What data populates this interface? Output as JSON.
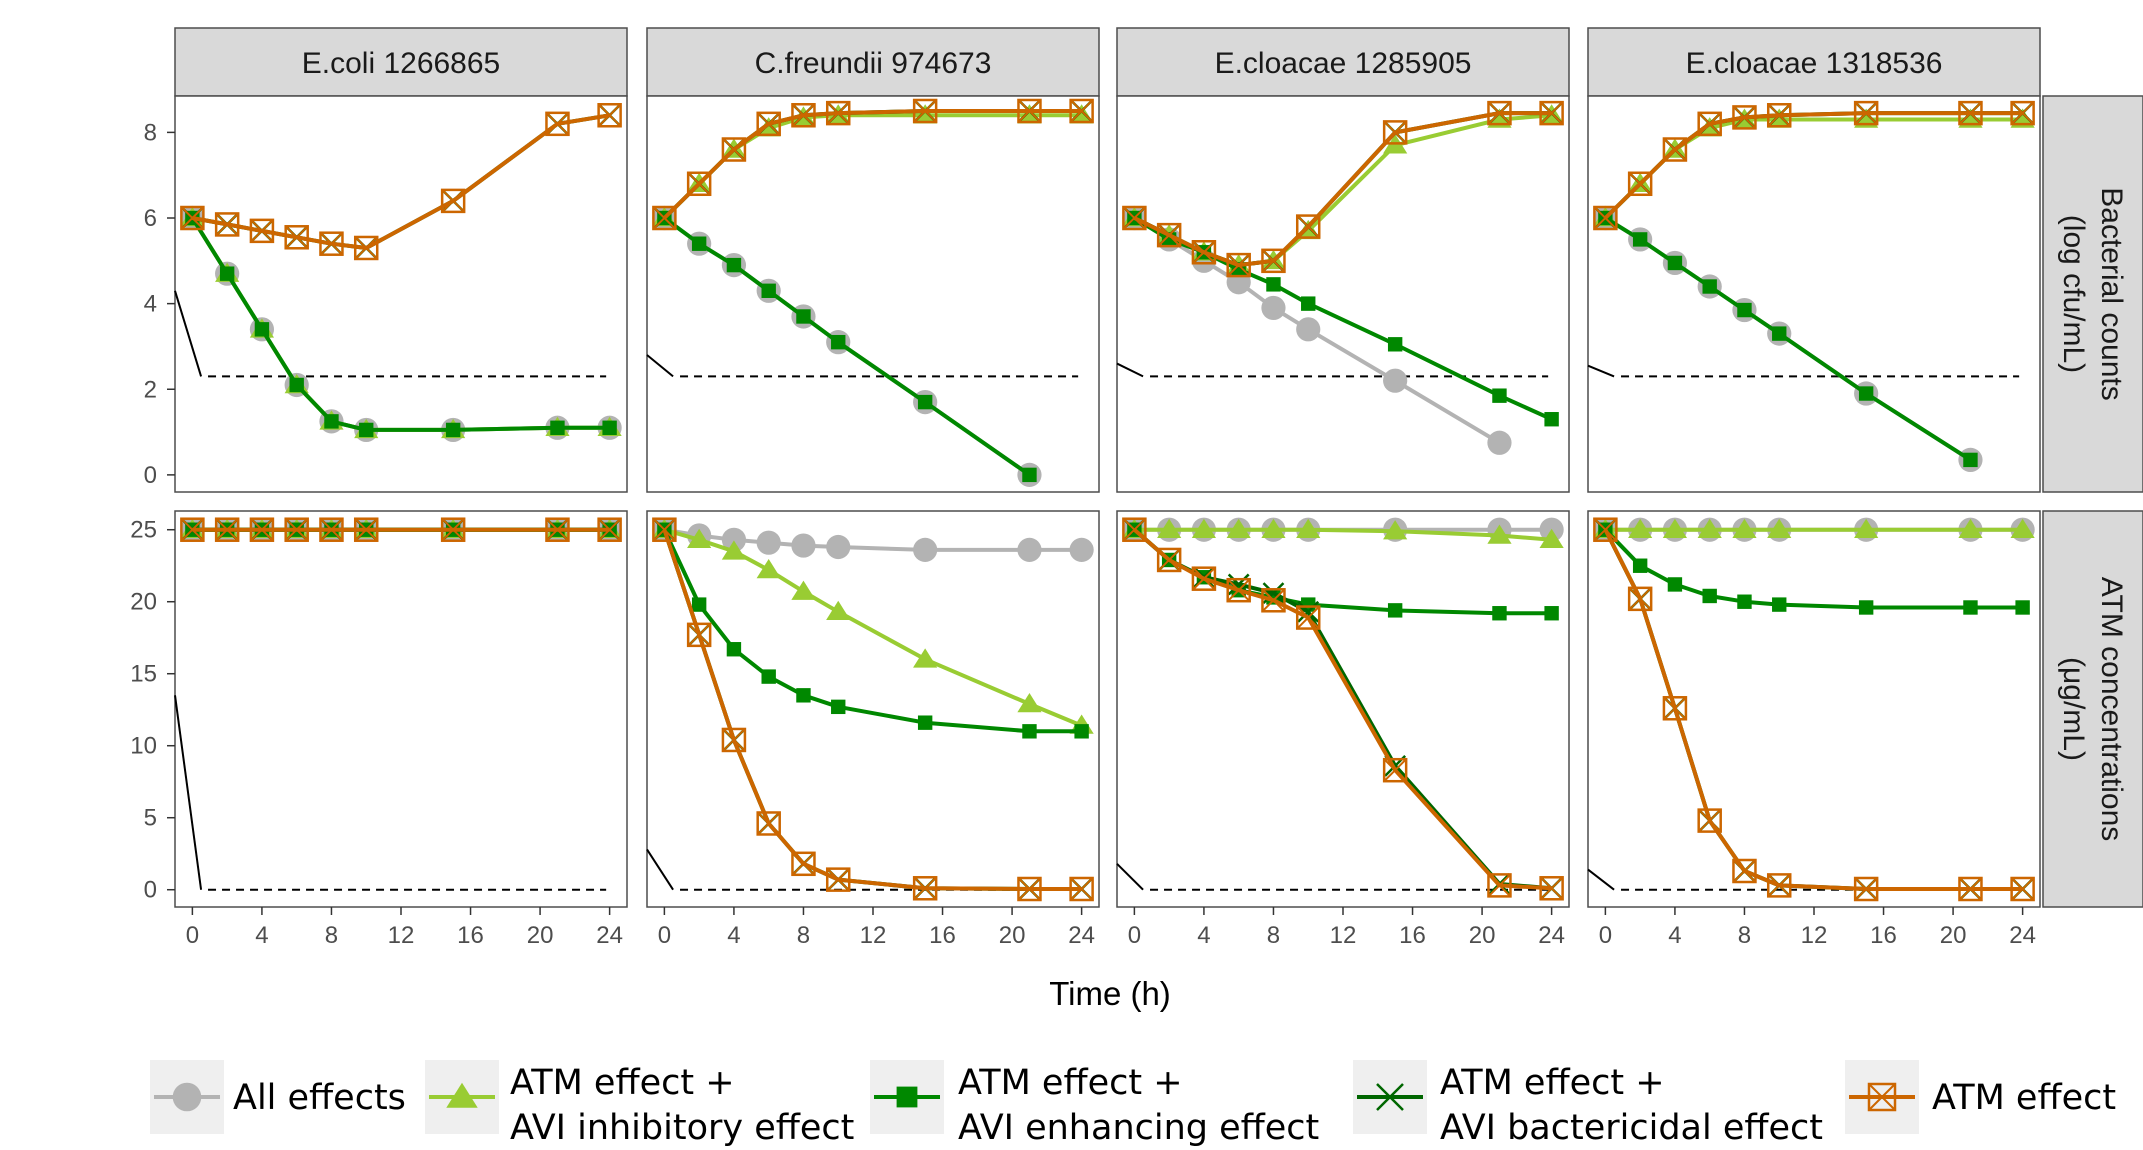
{
  "chart_data": {
    "type": "line",
    "xlabel": "Time (h)",
    "x_ticks": [
      0,
      4,
      8,
      12,
      16,
      20,
      24
    ],
    "xlim": [
      -1,
      25
    ],
    "columns": [
      "E.coli 1266865",
      "C.freundii 974673",
      "E.cloacae 1285905",
      "E.cloacae 1318536"
    ],
    "rows": [
      {
        "label": "Bacterial counts\n(log cfu/mL)",
        "ylim": [
          -0.4,
          8.85
        ],
        "y_ticks": [
          0,
          2,
          4,
          6,
          8
        ],
        "lloq": 2.3
      },
      {
        "label": "ATM concentrations\n(μg/mL)",
        "ylim": [
          -1.2,
          26.3
        ],
        "y_ticks": [
          0,
          5,
          10,
          15,
          20,
          25
        ],
        "lloq": 0
      }
    ],
    "legend_position": "bottom",
    "series_styles": [
      {
        "name": "All effects",
        "color": "#b3b3b3",
        "marker": "circle"
      },
      {
        "name": "ATM effect +\nAVI inhibitory effect",
        "color": "#99cc33",
        "marker": "triangle"
      },
      {
        "name": "ATM effect +\nAVI enhancing effect",
        "color": "#008800",
        "marker": "square"
      },
      {
        "name": "ATM effect +\nAVI bactericidal effect",
        "color": "#006600",
        "marker": "x"
      },
      {
        "name": "ATM effect",
        "color": "#cc6600",
        "marker": "boxx"
      }
    ],
    "panels": [
      {
        "row": 0,
        "col": 0,
        "lloq_line": {
          "x": [
            -1,
            0.5
          ],
          "y": [
            4.3,
            2.3
          ]
        },
        "series": [
          {
            "x": [
              0,
              2,
              4,
              6,
              8,
              10,
              15,
              21,
              24
            ],
            "y": [
              6.0,
              4.7,
              3.4,
              2.1,
              1.25,
              1.05,
              1.05,
              1.1,
              1.1
            ]
          },
          {
            "x": [
              0,
              2,
              4,
              6,
              8,
              10,
              15,
              21,
              24
            ],
            "y": [
              6.0,
              4.7,
              3.4,
              2.1,
              1.25,
              1.05,
              1.05,
              1.1,
              1.1
            ]
          },
          {
            "x": [
              0,
              2,
              4,
              6,
              8,
              10,
              15,
              21,
              24
            ],
            "y": [
              6.0,
              4.7,
              3.4,
              2.1,
              1.25,
              1.05,
              1.05,
              1.1,
              1.1
            ]
          },
          {
            "x": [
              0,
              2,
              4,
              6,
              8,
              10,
              15,
              21,
              24
            ],
            "y": [
              6.0,
              5.85,
              5.7,
              5.55,
              5.4,
              5.3,
              6.4,
              8.2,
              8.4
            ]
          },
          {
            "x": [
              0,
              2,
              4,
              6,
              8,
              10,
              15,
              21,
              24
            ],
            "y": [
              6.0,
              5.85,
              5.7,
              5.55,
              5.4,
              5.3,
              6.4,
              8.2,
              8.4
            ]
          }
        ]
      },
      {
        "row": 0,
        "col": 1,
        "lloq_line": {
          "x": [
            -1,
            0.5
          ],
          "y": [
            2.8,
            2.3
          ]
        },
        "series": [
          {
            "x": [
              0,
              2,
              4,
              6,
              8,
              10,
              15,
              21
            ],
            "y": [
              6.0,
              5.4,
              4.9,
              4.3,
              3.7,
              3.1,
              1.7,
              0.0
            ]
          },
          {
            "x": [
              0,
              2,
              4,
              6,
              8,
              10,
              15,
              21,
              24
            ],
            "y": [
              6.0,
              6.8,
              7.6,
              8.1,
              8.35,
              8.4,
              8.4,
              8.4,
              8.4
            ]
          },
          {
            "x": [
              0,
              2,
              4,
              6,
              8,
              10,
              15,
              21
            ],
            "y": [
              6.0,
              5.4,
              4.9,
              4.3,
              3.7,
              3.1,
              1.7,
              0.0
            ]
          },
          {
            "x": [
              0,
              2,
              4,
              6,
              8,
              10,
              15,
              21,
              24
            ],
            "y": [
              6.0,
              6.8,
              7.6,
              8.2,
              8.4,
              8.45,
              8.5,
              8.5,
              8.5
            ]
          },
          {
            "x": [
              0,
              2,
              4,
              6,
              8,
              10,
              15,
              21,
              24
            ],
            "y": [
              6.0,
              6.8,
              7.6,
              8.2,
              8.4,
              8.45,
              8.5,
              8.5,
              8.5
            ]
          }
        ]
      },
      {
        "row": 0,
        "col": 2,
        "lloq_line": {
          "x": [
            -1,
            0.5
          ],
          "y": [
            2.6,
            2.3
          ]
        },
        "series": [
          {
            "x": [
              0,
              2,
              4,
              6,
              8,
              10,
              15,
              21
            ],
            "y": [
              6.0,
              5.5,
              5.0,
              4.5,
              3.9,
              3.4,
              2.2,
              0.75
            ]
          },
          {
            "x": [
              0,
              2,
              4,
              6,
              8,
              10,
              15,
              21,
              24
            ],
            "y": [
              6.0,
              5.6,
              5.2,
              4.9,
              5.0,
              5.7,
              7.7,
              8.3,
              8.4
            ]
          },
          {
            "x": [
              0,
              2,
              4,
              6,
              8,
              10,
              15,
              21,
              24
            ],
            "y": [
              6.0,
              5.5,
              5.2,
              4.8,
              4.45,
              4.0,
              3.05,
              1.85,
              1.3
            ]
          },
          {
            "x": [
              0,
              2,
              4,
              6,
              8,
              10,
              15,
              21,
              24
            ],
            "y": [
              6.0,
              5.6,
              5.2,
              4.9,
              5.0,
              5.8,
              8.0,
              8.45,
              8.45
            ]
          },
          {
            "x": [
              0,
              2,
              4,
              6,
              8,
              10,
              15,
              21,
              24
            ],
            "y": [
              6.0,
              5.6,
              5.2,
              4.9,
              5.0,
              5.8,
              8.0,
              8.45,
              8.45
            ]
          }
        ]
      },
      {
        "row": 0,
        "col": 3,
        "lloq_line": {
          "x": [
            -1,
            0.5
          ],
          "y": [
            2.55,
            2.3
          ]
        },
        "series": [
          {
            "x": [
              0,
              2,
              4,
              6,
              8,
              10,
              15,
              21
            ],
            "y": [
              6.0,
              5.5,
              4.95,
              4.4,
              3.85,
              3.3,
              1.9,
              0.35
            ]
          },
          {
            "x": [
              0,
              2,
              4,
              6,
              8,
              10,
              15,
              21,
              24
            ],
            "y": [
              6.0,
              6.8,
              7.6,
              8.1,
              8.3,
              8.3,
              8.3,
              8.3,
              8.3
            ]
          },
          {
            "x": [
              0,
              2,
              4,
              6,
              8,
              10,
              15,
              21
            ],
            "y": [
              6.0,
              5.5,
              4.95,
              4.4,
              3.85,
              3.3,
              1.9,
              0.35
            ]
          },
          {
            "x": [
              0,
              2,
              4,
              6,
              8,
              10,
              15,
              21,
              24
            ],
            "y": [
              6.0,
              6.8,
              7.6,
              8.2,
              8.35,
              8.4,
              8.45,
              8.45,
              8.45
            ]
          },
          {
            "x": [
              0,
              2,
              4,
              6,
              8,
              10,
              15,
              21,
              24
            ],
            "y": [
              6.0,
              6.8,
              7.6,
              8.2,
              8.35,
              8.4,
              8.45,
              8.45,
              8.45
            ]
          }
        ]
      },
      {
        "row": 1,
        "col": 0,
        "lloq_line": {
          "x": [
            -1,
            0.5
          ],
          "y": [
            13.5,
            0.0
          ]
        },
        "series": [
          {
            "x": [
              0,
              2,
              4,
              6,
              8,
              10,
              15,
              21,
              24
            ],
            "y": [
              25,
              25,
              25,
              25,
              25,
              25,
              25,
              25,
              25
            ]
          },
          {
            "x": [
              0,
              2,
              4,
              6,
              8,
              10,
              15,
              21,
              24
            ],
            "y": [
              25,
              25,
              25,
              25,
              25,
              25,
              25,
              25,
              25
            ]
          },
          {
            "x": [
              0,
              2,
              4,
              6,
              8,
              10,
              15,
              21,
              24
            ],
            "y": [
              25,
              25,
              25,
              25,
              25,
              25,
              25,
              25,
              25
            ]
          },
          {
            "x": [
              0,
              2,
              4,
              6,
              8,
              10,
              15,
              21,
              24
            ],
            "y": [
              25,
              25,
              25,
              25,
              25,
              25,
              25,
              25,
              25
            ]
          },
          {
            "x": [
              0,
              2,
              4,
              6,
              8,
              10,
              15,
              21,
              24
            ],
            "y": [
              25,
              25,
              25,
              25,
              25,
              25,
              25,
              25,
              25
            ]
          }
        ]
      },
      {
        "row": 1,
        "col": 1,
        "lloq_line": {
          "x": [
            -1,
            0.5
          ],
          "y": [
            2.8,
            0.0
          ]
        },
        "series": [
          {
            "x": [
              0,
              2,
              4,
              6,
              8,
              10,
              15,
              21,
              24
            ],
            "y": [
              25,
              24.6,
              24.3,
              24.1,
              23.9,
              23.8,
              23.6,
              23.6,
              23.6
            ]
          },
          {
            "x": [
              0,
              2,
              4,
              6,
              8,
              10,
              15,
              21,
              24
            ],
            "y": [
              25,
              24.3,
              23.5,
              22.2,
              20.7,
              19.3,
              16.0,
              12.9,
              11.4
            ]
          },
          {
            "x": [
              0,
              2,
              4,
              6,
              8,
              10,
              15,
              21,
              24
            ],
            "y": [
              25,
              19.8,
              16.7,
              14.8,
              13.5,
              12.7,
              11.6,
              11.0,
              11.0
            ]
          },
          {
            "x": [
              0,
              2,
              4,
              6,
              8,
              10,
              15,
              21,
              24
            ],
            "y": [
              25,
              17.7,
              10.4,
              4.6,
              1.8,
              0.7,
              0.1,
              0.05,
              0.05
            ]
          },
          {
            "x": [
              0,
              2,
              4,
              6,
              8,
              10,
              15,
              21,
              24
            ],
            "y": [
              25,
              17.7,
              10.4,
              4.6,
              1.8,
              0.7,
              0.1,
              0.05,
              0.05
            ]
          }
        ]
      },
      {
        "row": 1,
        "col": 2,
        "lloq_line": {
          "x": [
            -1,
            0.5
          ],
          "y": [
            1.8,
            0.0
          ]
        },
        "series": [
          {
            "x": [
              0,
              2,
              4,
              6,
              8,
              10,
              15,
              21,
              24
            ],
            "y": [
              25,
              25,
              25,
              25,
              25,
              25,
              25,
              25,
              25
            ]
          },
          {
            "x": [
              0,
              2,
              4,
              6,
              8,
              10,
              15,
              21,
              24
            ],
            "y": [
              25,
              25,
              25,
              25,
              25,
              25,
              24.9,
              24.6,
              24.3
            ]
          },
          {
            "x": [
              0,
              2,
              4,
              6,
              8,
              10,
              15,
              21,
              24
            ],
            "y": [
              25,
              22.9,
              21.7,
              20.8,
              20.3,
              19.8,
              19.4,
              19.2,
              19.2
            ]
          },
          {
            "x": [
              0,
              2,
              4,
              6,
              8,
              10,
              15,
              21,
              24
            ],
            "y": [
              25,
              22.9,
              21.7,
              21.2,
              20.6,
              19.3,
              8.6,
              0.4,
              0.1
            ]
          },
          {
            "x": [
              0,
              2,
              4,
              6,
              8,
              10,
              15,
              21,
              24
            ],
            "y": [
              25,
              22.9,
              21.6,
              20.8,
              20.1,
              18.9,
              8.3,
              0.3,
              0.1
            ]
          }
        ]
      },
      {
        "row": 1,
        "col": 3,
        "lloq_line": {
          "x": [
            -1,
            0.5
          ],
          "y": [
            1.4,
            0.0
          ]
        },
        "series": [
          {
            "x": [
              0,
              2,
              4,
              6,
              8,
              10,
              15,
              21,
              24
            ],
            "y": [
              25,
              25,
              25,
              25,
              25,
              25,
              25,
              25,
              25
            ]
          },
          {
            "x": [
              0,
              2,
              4,
              6,
              8,
              10,
              15,
              21,
              24
            ],
            "y": [
              25,
              25,
              25,
              25,
              25,
              25,
              25,
              25,
              25
            ]
          },
          {
            "x": [
              0,
              2,
              4,
              6,
              8,
              10,
              15,
              21,
              24
            ],
            "y": [
              25,
              22.5,
              21.2,
              20.4,
              20.0,
              19.8,
              19.6,
              19.6,
              19.6
            ]
          },
          {
            "x": [
              0,
              2,
              4,
              6,
              8,
              10,
              15,
              21,
              24
            ],
            "y": [
              25,
              20.2,
              12.6,
              4.8,
              1.3,
              0.3,
              0.05,
              0.05,
              0.05
            ]
          },
          {
            "x": [
              0,
              2,
              4,
              6,
              8,
              10,
              15,
              21,
              24
            ],
            "y": [
              25,
              20.2,
              12.6,
              4.8,
              1.3,
              0.3,
              0.05,
              0.05,
              0.05
            ]
          }
        ]
      }
    ]
  }
}
